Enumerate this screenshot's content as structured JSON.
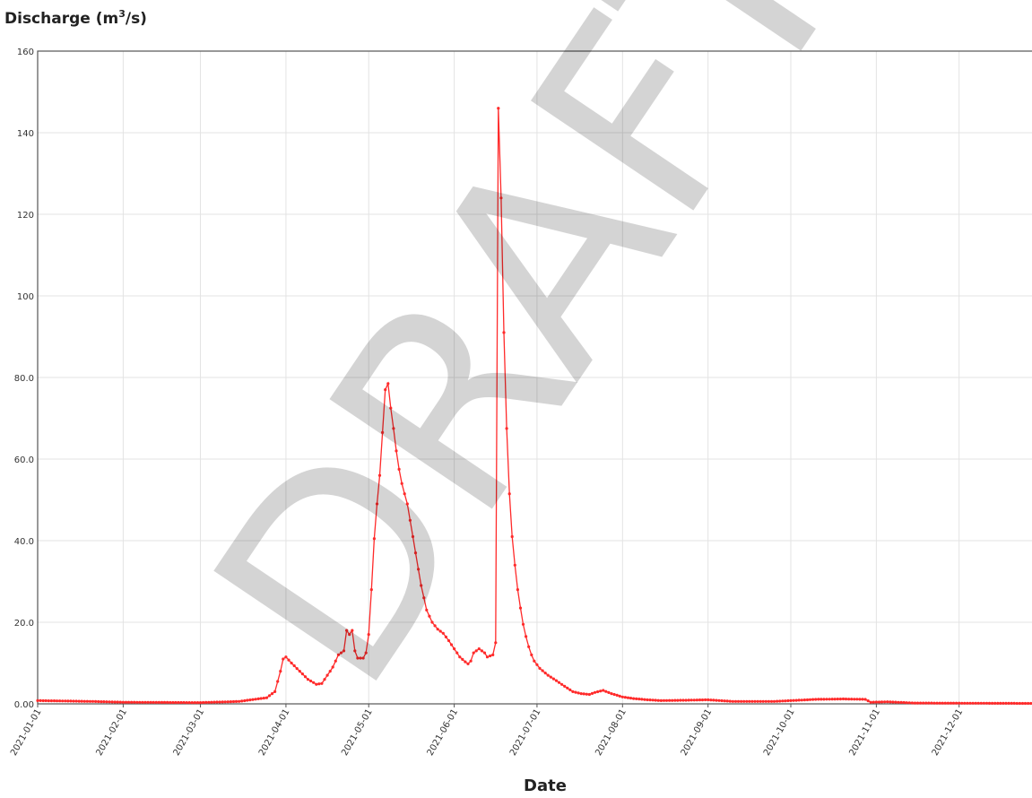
{
  "chart_data": {
    "type": "line",
    "ylabel": "Discharge (m³/s)",
    "ylabel_parts": {
      "base": "Discharge (m",
      "sup": "3",
      "tail": "/s)"
    },
    "xlabel": "Date",
    "watermark": "DRAFT",
    "xlim": [
      "2021-01-01",
      "2021-12-31"
    ],
    "ylim": [
      0,
      160
    ],
    "y_ticks": [
      {
        "value": 0,
        "label": "0.00"
      },
      {
        "value": 20,
        "label": "20.0"
      },
      {
        "value": 40,
        "label": "40.0"
      },
      {
        "value": 60,
        "label": "60.0"
      },
      {
        "value": 80,
        "label": "80.0"
      },
      {
        "value": 100,
        "label": "100"
      },
      {
        "value": 120,
        "label": "120"
      },
      {
        "value": 140,
        "label": "140"
      },
      {
        "value": 160,
        "label": "160"
      }
    ],
    "x_ticks": [
      "2021-01-01",
      "2021-02-01",
      "2021-03-01",
      "2021-04-01",
      "2021-05-01",
      "2021-06-01",
      "2021-07-01",
      "2021-08-01",
      "2021-09-01",
      "2021-10-01",
      "2021-11-01",
      "2021-12-01"
    ],
    "grid": true,
    "colors": {
      "line": "#ff2a2a",
      "grid": "#e3e3e3",
      "axis": "#555555"
    },
    "series": [
      {
        "start_date": "2021-01-01",
        "step_days": 1,
        "control_points": [
          [
            "2021-01-01",
            0.8
          ],
          [
            "2021-01-20",
            0.6
          ],
          [
            "2021-02-01",
            0.4
          ],
          [
            "2021-03-01",
            0.3
          ],
          [
            "2021-03-15",
            0.6
          ],
          [
            "2021-03-25",
            1.5
          ],
          [
            "2021-03-28",
            3
          ],
          [
            "2021-03-30",
            8
          ],
          [
            "2021-03-31",
            11
          ],
          [
            "2021-04-01",
            11.5
          ],
          [
            "2021-04-03",
            10
          ],
          [
            "2021-04-06",
            8
          ],
          [
            "2021-04-09",
            6
          ],
          [
            "2021-04-12",
            4.8
          ],
          [
            "2021-04-14",
            5
          ],
          [
            "2021-04-16",
            7
          ],
          [
            "2021-04-18",
            9
          ],
          [
            "2021-04-20",
            12
          ],
          [
            "2021-04-22",
            13
          ],
          [
            "2021-04-23",
            18
          ],
          [
            "2021-04-24",
            17
          ],
          [
            "2021-04-25",
            18
          ],
          [
            "2021-04-26",
            13
          ],
          [
            "2021-04-27",
            11.2
          ],
          [
            "2021-04-29",
            11.2
          ],
          [
            "2021-04-30",
            12.5
          ],
          [
            "2021-05-01",
            17
          ],
          [
            "2021-05-02",
            28
          ],
          [
            "2021-05-03",
            40.5
          ],
          [
            "2021-05-04",
            49
          ],
          [
            "2021-05-05",
            56
          ],
          [
            "2021-05-06",
            66.5
          ],
          [
            "2021-05-07",
            77
          ],
          [
            "2021-05-08",
            78.5
          ],
          [
            "2021-05-09",
            72.5
          ],
          [
            "2021-05-10",
            67.5
          ],
          [
            "2021-05-11",
            62
          ],
          [
            "2021-05-12",
            57.5
          ],
          [
            "2021-05-13",
            54
          ],
          [
            "2021-05-14",
            51.5
          ],
          [
            "2021-05-15",
            49
          ],
          [
            "2021-05-16",
            45
          ],
          [
            "2021-05-17",
            41
          ],
          [
            "2021-05-18",
            37
          ],
          [
            "2021-05-19",
            33
          ],
          [
            "2021-05-20",
            29
          ],
          [
            "2021-05-21",
            26
          ],
          [
            "2021-05-22",
            23
          ],
          [
            "2021-05-24",
            20
          ],
          [
            "2021-05-26",
            18.3
          ],
          [
            "2021-05-28",
            17.3
          ],
          [
            "2021-05-30",
            15.5
          ],
          [
            "2021-06-01",
            13.5
          ],
          [
            "2021-06-03",
            11.5
          ],
          [
            "2021-06-05",
            10.3
          ],
          [
            "2021-06-06",
            9.8
          ],
          [
            "2021-06-07",
            10.5
          ],
          [
            "2021-06-08",
            12.5
          ],
          [
            "2021-06-10",
            13.5
          ],
          [
            "2021-06-12",
            12.5
          ],
          [
            "2021-06-13",
            11.5
          ],
          [
            "2021-06-15",
            12
          ],
          [
            "2021-06-16",
            15
          ],
          [
            "2021-06-17",
            146
          ],
          [
            "2021-06-18",
            124
          ],
          [
            "2021-06-19",
            91
          ],
          [
            "2021-06-20",
            67.5
          ],
          [
            "2021-06-21",
            51.5
          ],
          [
            "2021-06-22",
            41
          ],
          [
            "2021-06-23",
            34
          ],
          [
            "2021-06-24",
            28
          ],
          [
            "2021-06-25",
            23.5
          ],
          [
            "2021-06-26",
            19.5
          ],
          [
            "2021-06-27",
            16.5
          ],
          [
            "2021-06-28",
            14
          ],
          [
            "2021-06-29",
            12
          ],
          [
            "2021-06-30",
            10.5
          ],
          [
            "2021-07-02",
            8.7
          ],
          [
            "2021-07-05",
            7
          ],
          [
            "2021-07-08",
            5.7
          ],
          [
            "2021-07-11",
            4.3
          ],
          [
            "2021-07-14",
            3
          ],
          [
            "2021-07-17",
            2.5
          ],
          [
            "2021-07-20",
            2.3
          ],
          [
            "2021-07-22",
            2.8
          ],
          [
            "2021-07-25",
            3.3
          ],
          [
            "2021-07-28",
            2.5
          ],
          [
            "2021-08-01",
            1.7
          ],
          [
            "2021-08-05",
            1.3
          ],
          [
            "2021-08-10",
            1.0
          ],
          [
            "2021-08-15",
            0.8
          ],
          [
            "2021-08-25",
            0.9
          ],
          [
            "2021-09-01",
            1.0
          ],
          [
            "2021-09-10",
            0.6
          ],
          [
            "2021-09-25",
            0.6
          ],
          [
            "2021-10-01",
            0.8
          ],
          [
            "2021-10-10",
            1.1
          ],
          [
            "2021-10-20",
            1.2
          ],
          [
            "2021-10-28",
            1.1
          ],
          [
            "2021-10-30",
            0.4
          ],
          [
            "2021-11-05",
            0.5
          ],
          [
            "2021-11-15",
            0.2
          ],
          [
            "2021-12-31",
            0.1
          ]
        ]
      }
    ]
  }
}
